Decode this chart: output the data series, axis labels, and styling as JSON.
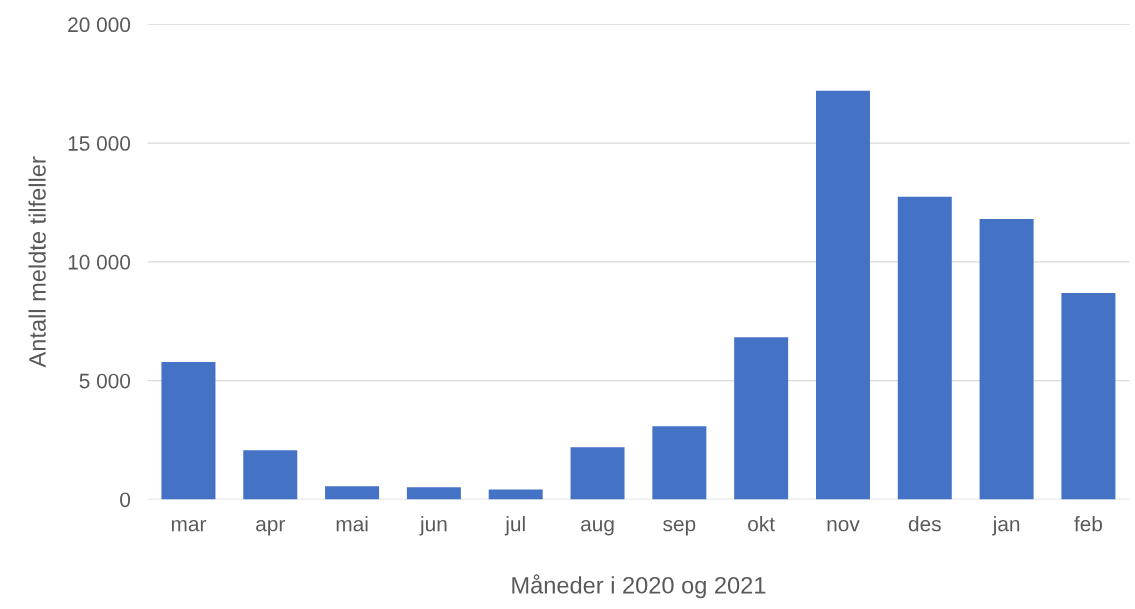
{
  "chart_data": {
    "type": "bar",
    "xlabel": "Måneder i 2020 og 2021",
    "ylabel": "Antall meldte tilfeller",
    "categories": [
      "mar",
      "apr",
      "mai",
      "jun",
      "jul",
      "aug",
      "sep",
      "okt",
      "nov",
      "des",
      "jan",
      "feb"
    ],
    "values": [
      5780,
      2070,
      550,
      510,
      420,
      2190,
      3080,
      6830,
      17210,
      12740,
      11810,
      8690
    ],
    "color": "#4472c4",
    "ylim": [
      0,
      20000
    ],
    "yticks": [
      {
        "value": 0,
        "label": "0"
      },
      {
        "value": 5000,
        "label": "5 000"
      },
      {
        "value": 10000,
        "label": "10 000"
      },
      {
        "value": 15000,
        "label": "15 000"
      },
      {
        "value": 20000,
        "label": "20 000"
      }
    ],
    "grid": "y"
  }
}
